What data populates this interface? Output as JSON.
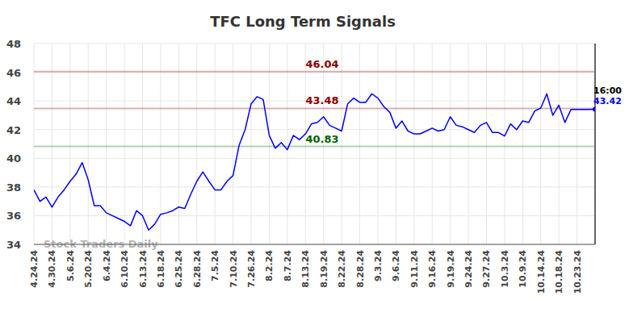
{
  "chart_data": {
    "type": "line",
    "title": "TFC Long Term Signals",
    "watermark": "Stock Traders Daily",
    "time_label": "16:00",
    "categories": [
      "4.24.24",
      null,
      null,
      "4.30.24",
      null,
      null,
      "5.6.24",
      null,
      null,
      "5.20.24",
      null,
      null,
      "6.4.24",
      null,
      null,
      "6.10.24",
      null,
      null,
      "6.13.24",
      null,
      null,
      "6.18.24",
      null,
      null,
      "6.25.24",
      null,
      null,
      "6.28.24",
      null,
      null,
      "7.5.24",
      null,
      null,
      "7.10.24",
      null,
      null,
      "7.26.24",
      null,
      null,
      "8.2.24",
      null,
      null,
      "8.7.24",
      null,
      null,
      "8.13.24",
      null,
      null,
      "8.19.24",
      null,
      null,
      "8.22.24",
      null,
      null,
      "8.28.24",
      null,
      null,
      "9.3.24",
      null,
      null,
      "9.6.24",
      null,
      null,
      "9.11.24",
      null,
      null,
      "9.16.24",
      null,
      null,
      "9.19.24",
      null,
      null,
      "9.24.24",
      null,
      null,
      "9.27.24",
      null,
      null,
      "10.3.24",
      null,
      null,
      "10.9.24",
      null,
      null,
      "10.14.24",
      null,
      null,
      "10.18.24",
      null,
      null,
      "10.23.24",
      null,
      null,
      null
    ],
    "series": [
      {
        "color": "#0000ff",
        "values": [
          37.8,
          37.0,
          37.3,
          36.6,
          37.3,
          37.8,
          38.4,
          38.9,
          39.7,
          38.5,
          36.7,
          36.7,
          36.2,
          36.0,
          35.8,
          35.6,
          35.3,
          36.35,
          36.0,
          35.0,
          35.4,
          36.1,
          36.2,
          36.35,
          36.6,
          36.5,
          37.5,
          38.4,
          39.05,
          38.4,
          37.8,
          37.8,
          38.4,
          38.8,
          40.9,
          42.0,
          43.8,
          44.3,
          44.1,
          41.6,
          40.7,
          41.1,
          40.6,
          41.6,
          41.3,
          41.7,
          42.4,
          42.5,
          42.9,
          42.3,
          42.1,
          41.9,
          43.8,
          44.2,
          43.9,
          43.9,
          44.5,
          44.2,
          43.6,
          43.2,
          42.1,
          42.6,
          41.9,
          41.7,
          41.7,
          41.9,
          42.1,
          41.9,
          42.0,
          42.9,
          42.3,
          42.2,
          42.0,
          41.8,
          42.3,
          42.5,
          41.8,
          41.8,
          41.55,
          42.4,
          42.0,
          42.6,
          42.5,
          43.3,
          43.5,
          44.5,
          43.0,
          43.7,
          42.5,
          43.4,
          43.4,
          43.4,
          43.4,
          43.42
        ]
      }
    ],
    "reference_lines": [
      {
        "value": 46.04,
        "color": "#8b0000"
      },
      {
        "value": 43.48,
        "color": "#8b0000"
      },
      {
        "value": 40.83,
        "color": "#006400"
      }
    ],
    "ylim": [
      34,
      48
    ],
    "yticks": [
      34,
      36,
      38,
      40,
      42,
      44,
      46,
      48
    ],
    "grid": true
  }
}
